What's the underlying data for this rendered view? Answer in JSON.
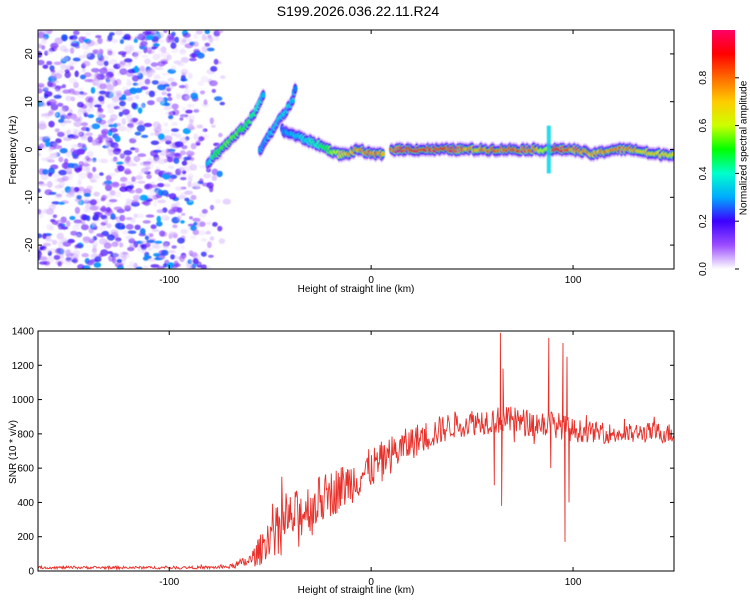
{
  "title": "S199.2026.036.22.11.R24",
  "chart_data": [
    {
      "type": "heatmap",
      "id": "spectrogram",
      "xlabel": "Height of straight line (km)",
      "ylabel": "Frequency (Hz)",
      "xlim": [
        -165,
        150
      ],
      "ylim": [
        -25,
        25
      ],
      "xticks": [
        -100,
        0,
        100
      ],
      "xtick_labels": [
        "-100",
        "0",
        "100"
      ],
      "yticks": [
        -20,
        -10,
        0,
        10,
        20
      ],
      "ytick_labels": [
        "-20",
        "-10",
        "0",
        "10",
        "20"
      ],
      "colorbar": {
        "label": "Normalized spectral amplitude",
        "range": [
          0,
          1
        ],
        "ticks": [
          0,
          0.2,
          0.4,
          0.6,
          0.8
        ],
        "tick_labels": [
          "0.0",
          "0.2",
          "0.4",
          "0.6",
          "0.8"
        ],
        "colormap": [
          "#ffffff",
          "#9b4dff",
          "#3b00ff",
          "#00aaff",
          "#00ffcc",
          "#00ff00",
          "#ccff00",
          "#ffcc00",
          "#ff6a00",
          "#ff0000",
          "#ff0066"
        ]
      },
      "noise_region": {
        "x_range": [
          -165,
          -70
        ],
        "y_range": [
          -25,
          25
        ],
        "amplitude_range": [
          0.02,
          0.3
        ]
      },
      "ridge_segments": [
        {
          "x": [
            -81,
            -77,
            -72,
            -67,
            -62,
            -57,
            -53
          ],
          "y": [
            -3,
            -1,
            1,
            3,
            5,
            8,
            12
          ],
          "amp": [
            0.35,
            0.5,
            0.55,
            0.6,
            0.5,
            0.45,
            0.35
          ]
        },
        {
          "x": [
            -55,
            -49,
            -44,
            -39,
            -37
          ],
          "y": [
            0,
            4,
            7,
            10,
            14
          ],
          "amp": [
            0.3,
            0.35,
            0.4,
            0.35,
            0.3
          ]
        },
        {
          "x": [
            -44,
            -38,
            -32,
            -26,
            -21,
            -16,
            -12,
            -6,
            0,
            6
          ],
          "y": [
            4,
            3,
            2,
            1,
            0,
            -1,
            -1,
            0,
            -1,
            -1
          ],
          "amp": [
            0.3,
            0.35,
            0.4,
            0.45,
            0.55,
            0.7,
            0.75,
            0.8,
            0.85,
            0.85
          ]
        },
        {
          "x": [
            10,
            20,
            30,
            40,
            50,
            60,
            70,
            80,
            86,
            90,
            95,
            100,
            110,
            120,
            130,
            140,
            150
          ],
          "y": [
            0,
            0,
            0,
            0,
            0,
            0,
            0,
            0,
            0,
            0,
            0,
            0,
            -1,
            0,
            0,
            -1,
            -1
          ],
          "amp": [
            0.9,
            0.95,
            0.9,
            0.95,
            0.8,
            0.85,
            0.9,
            0.85,
            0.6,
            0.95,
            0.9,
            0.85,
            0.8,
            0.85,
            0.8,
            0.75,
            0.7
          ]
        }
      ],
      "ridge_spikes": [
        {
          "x": 88,
          "y_range": [
            -5,
            5
          ],
          "amp": 0.35
        }
      ]
    },
    {
      "type": "line",
      "id": "snr",
      "xlabel": "Height of straight line (km)",
      "ylabel": "SNR (10 * v/v)",
      "xlim": [
        -165,
        150
      ],
      "ylim": [
        0,
        1400
      ],
      "xticks": [
        -100,
        0,
        100
      ],
      "xtick_labels": [
        "-100",
        "0",
        "100"
      ],
      "yticks": [
        0,
        200,
        400,
        600,
        800,
        1000,
        1200,
        1400
      ],
      "ytick_labels": [
        "0",
        "200",
        "400",
        "600",
        "800",
        "1000",
        "1200",
        "1400"
      ],
      "line_color": "#e8302a",
      "series": [
        {
          "name": "SNR",
          "x": [
            -165,
            -140,
            -110,
            -80,
            -70,
            -60,
            -55,
            -50,
            -40,
            -30,
            -20,
            -10,
            0,
            10,
            20,
            30,
            40,
            50,
            60,
            70,
            80,
            90,
            100,
            110,
            120,
            130,
            140,
            150
          ],
          "baseline": [
            20,
            20,
            20,
            20,
            25,
            60,
            120,
            220,
            300,
            380,
            450,
            520,
            600,
            680,
            750,
            800,
            850,
            870,
            880,
            880,
            860,
            860,
            820,
            810,
            800,
            800,
            810,
            800
          ],
          "noise_amp": [
            8,
            8,
            8,
            8,
            12,
            40,
            90,
            120,
            150,
            150,
            140,
            130,
            120,
            110,
            100,
            90,
            80,
            80,
            80,
            80,
            80,
            80,
            70,
            60,
            60,
            60,
            60,
            60
          ]
        }
      ],
      "spikes": [
        {
          "x": 64,
          "value": 1390
        },
        {
          "x": 64.6,
          "value": 380
        },
        {
          "x": 65.3,
          "value": 1180
        },
        {
          "x": 61,
          "value": 500
        },
        {
          "x": 88,
          "value": 1360
        },
        {
          "x": 89,
          "value": 600
        },
        {
          "x": 95,
          "value": 1330
        },
        {
          "x": 96,
          "value": 170
        },
        {
          "x": 97,
          "value": 1250
        },
        {
          "x": 98,
          "value": 400
        }
      ]
    }
  ]
}
